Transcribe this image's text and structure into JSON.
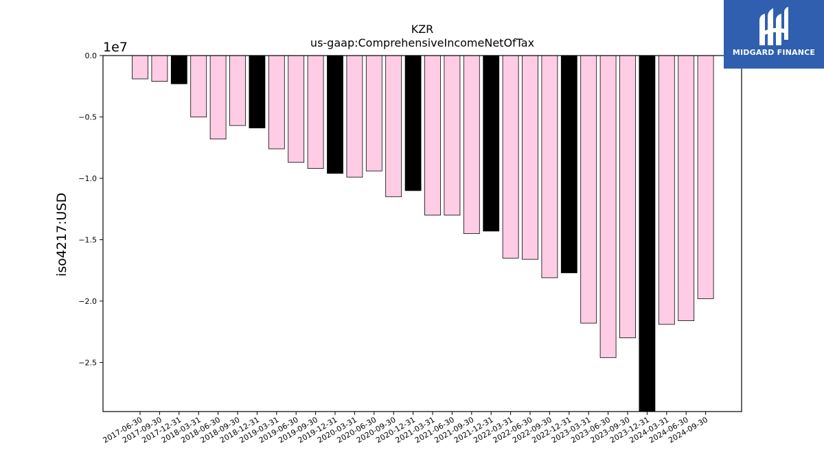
{
  "brand": {
    "name": "MIDGARD FINANCE",
    "bg": "#2f5fae",
    "icon": "midgard-logo-icon"
  },
  "chart_data": {
    "type": "bar",
    "title": "KZR",
    "subtitle": "us-gaap:ComprehensiveIncomeNetOfTax",
    "xlabel": "",
    "ylabel": "iso4217:USD",
    "offset_label": "1e7",
    "ylim": [
      -29000000,
      0
    ],
    "yticks": [
      0.0,
      -0.5,
      -1.0,
      -1.5,
      -2.0,
      -2.5
    ],
    "ytick_labels": [
      "0.0",
      "−0.5",
      "−1.0",
      "−1.5",
      "−2.0",
      "−2.5"
    ],
    "grid": false,
    "colors": {
      "quarter": "#ffcce6",
      "year_end": "#000000",
      "edge": "#000000"
    },
    "categories": [
      "2017-06-30",
      "2017-09-30",
      "2017-12-31",
      "2018-03-31",
      "2018-06-30",
      "2018-09-30",
      "2018-12-31",
      "2019-03-31",
      "2019-06-30",
      "2019-09-30",
      "2019-12-31",
      "2020-03-31",
      "2020-06-30",
      "2020-09-30",
      "2020-12-31",
      "2021-03-31",
      "2021-06-30",
      "2021-09-30",
      "2021-12-31",
      "2022-03-31",
      "2022-06-30",
      "2022-09-30",
      "2022-12-31",
      "2023-03-31",
      "2023-06-30",
      "2023-09-30",
      "2023-12-31",
      "2024-03-31",
      "2024-06-30",
      "2024-09-30"
    ],
    "values": [
      -1900000,
      -2100000,
      -2300000,
      -5000000,
      -6800000,
      -5700000,
      -5900000,
      -7600000,
      -8700000,
      -9200000,
      -9600000,
      -9900000,
      -9400000,
      -11500000,
      -11000000,
      -13000000,
      -13000000,
      -14500000,
      -14300000,
      -16500000,
      -16600000,
      -18100000,
      -17700000,
      -21800000,
      -24600000,
      -23000000,
      -29000000,
      -21900000,
      -21600000,
      -19800000
    ],
    "year_end": [
      false,
      false,
      true,
      false,
      false,
      false,
      true,
      false,
      false,
      false,
      true,
      false,
      false,
      false,
      true,
      false,
      false,
      false,
      true,
      false,
      false,
      false,
      true,
      false,
      false,
      false,
      true,
      false,
      false,
      false
    ]
  }
}
